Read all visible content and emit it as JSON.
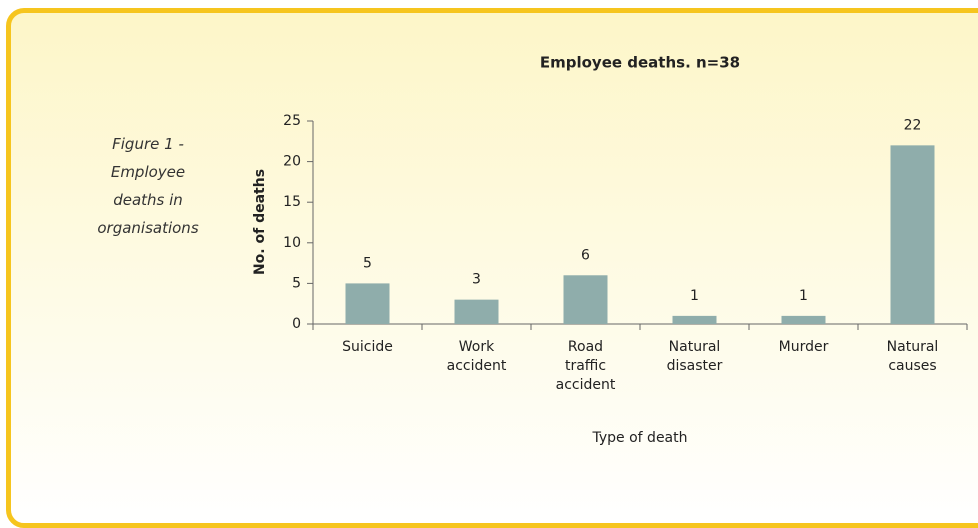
{
  "caption": "Figure 1 - Employee deaths in organisations",
  "chart_data": {
    "type": "bar",
    "title": "Employee deaths. n=38",
    "x_label": "Type of death",
    "y_label": "No. of deaths",
    "categories": [
      "Suicide",
      "Work accident",
      "Road traffic accident",
      "Natural disaster",
      "Murder",
      "Natural causes"
    ],
    "values": [
      5,
      3,
      6,
      1,
      1,
      22
    ],
    "color": "#8fadab",
    "ylim": [
      0,
      25
    ],
    "yticks": [
      0,
      5,
      10,
      15,
      20,
      25
    ]
  }
}
